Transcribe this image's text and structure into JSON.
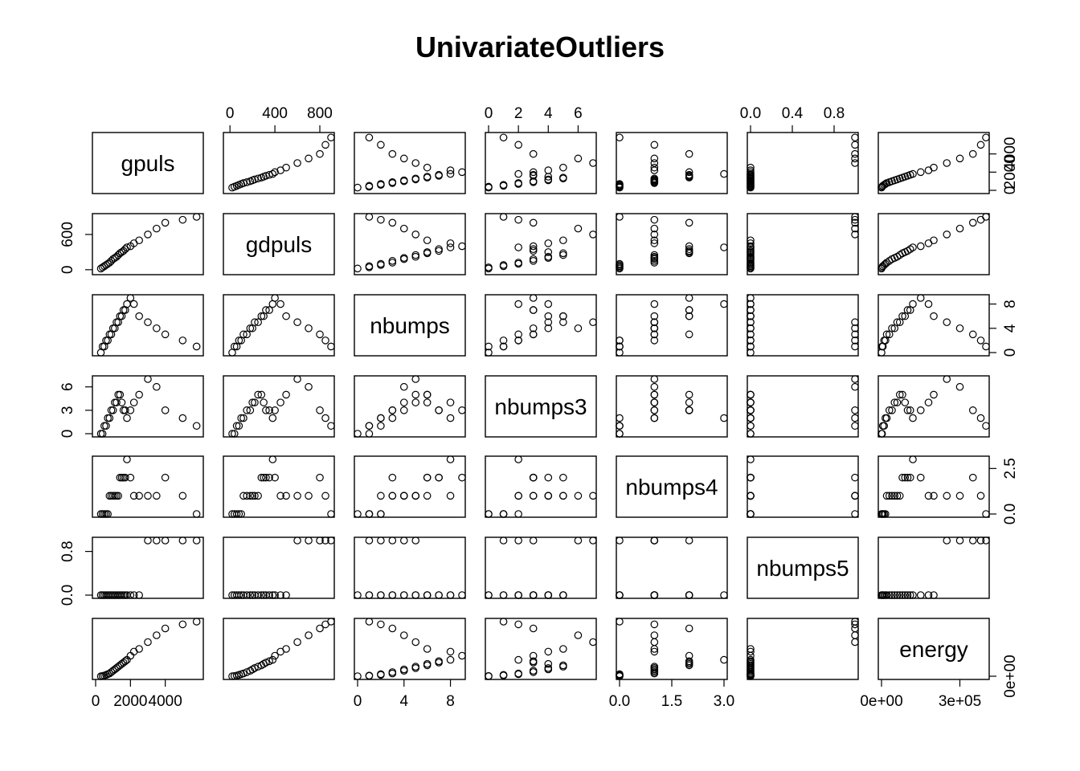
{
  "chart_data": {
    "type": "scatter",
    "title": "UnivariateOutliers",
    "variables": [
      {
        "name": "gpuls",
        "range": [
          0,
          6000
        ],
        "ticks": [
          0,
          2000,
          4000
        ],
        "tick_labels": [
          "0",
          "2000",
          "4000"
        ]
      },
      {
        "name": "gdpuls",
        "range": [
          -30,
          900
        ],
        "ticks": [
          0,
          400,
          800
        ],
        "tick_labels": [
          "0",
          "400",
          "800"
        ],
        "left_ticks": [
          0,
          600
        ],
        "left_tick_labels": [
          "0",
          "600"
        ]
      },
      {
        "name": "nbumps",
        "range": [
          0,
          9
        ],
        "ticks": [
          0,
          4,
          8
        ],
        "tick_labels": [
          "0",
          "4",
          "8"
        ]
      },
      {
        "name": "nbumps3",
        "range": [
          0,
          7
        ],
        "ticks": [
          0,
          2,
          4,
          6
        ],
        "tick_labels": [
          "0",
          "2",
          "4",
          "6"
        ],
        "left_ticks": [
          0,
          3,
          6
        ],
        "left_tick_labels": [
          "0",
          "3",
          "6"
        ]
      },
      {
        "name": "nbumps4",
        "range": [
          0,
          3
        ],
        "ticks": [
          0,
          1.5,
          3
        ],
        "tick_labels": [
          "0.0",
          "1.5",
          "3.0"
        ],
        "right_ticks": [
          0,
          2.5
        ],
        "right_tick_labels": [
          "0.0",
          "2.5"
        ]
      },
      {
        "name": "nbumps5",
        "range": [
          0,
          1
        ],
        "ticks": [
          0,
          0.4,
          0.8
        ],
        "tick_labels": [
          "0.0",
          "0.4",
          "0.8"
        ],
        "left_ticks": [
          0,
          0.8
        ],
        "left_tick_labels": [
          "0.0",
          "0.8"
        ]
      },
      {
        "name": "energy",
        "range": [
          0,
          400000
        ],
        "ticks": [
          0,
          300000
        ],
        "tick_labels": [
          "0e+00",
          "3e+05"
        ],
        "right_ticks": [
          0
        ],
        "right_tick_labels": [
          "0e+00"
        ]
      }
    ],
    "points": [
      [
        300,
        20,
        0,
        0,
        0,
        0,
        0
      ],
      [
        400,
        40,
        1,
        0,
        0,
        0,
        2000
      ],
      [
        500,
        60,
        1,
        1,
        0,
        0,
        5000
      ],
      [
        600,
        80,
        2,
        1,
        0,
        0,
        10000
      ],
      [
        700,
        100,
        2,
        2,
        0,
        0,
        15000
      ],
      [
        800,
        120,
        3,
        2,
        1,
        0,
        20000
      ],
      [
        900,
        150,
        3,
        3,
        1,
        0,
        30000
      ],
      [
        1000,
        180,
        4,
        3,
        1,
        0,
        40000
      ],
      [
        1100,
        200,
        4,
        4,
        1,
        0,
        50000
      ],
      [
        1200,
        220,
        5,
        4,
        1,
        0,
        60000
      ],
      [
        1300,
        250,
        5,
        5,
        1,
        0,
        70000
      ],
      [
        1400,
        280,
        6,
        5,
        2,
        0,
        80000
      ],
      [
        1500,
        300,
        6,
        4,
        2,
        0,
        90000
      ],
      [
        1600,
        320,
        7,
        3,
        2,
        0,
        100000
      ],
      [
        1700,
        350,
        7,
        3,
        2,
        0,
        110000
      ],
      [
        1800,
        380,
        8,
        2,
        3,
        0,
        120000
      ],
      [
        2000,
        400,
        9,
        3,
        2,
        0,
        150000
      ],
      [
        2200,
        450,
        8,
        4,
        1,
        0,
        180000
      ],
      [
        2500,
        500,
        6,
        5,
        1,
        0,
        200000
      ],
      [
        3000,
        600,
        5,
        7,
        1,
        1,
        250000
      ],
      [
        3500,
        700,
        4,
        6,
        1,
        1,
        300000
      ],
      [
        4000,
        800,
        3,
        3,
        2,
        1,
        350000
      ],
      [
        5000,
        850,
        2,
        2,
        1,
        1,
        380000
      ],
      [
        5800,
        900,
        1,
        1,
        0,
        1,
        400000
      ]
    ],
    "point_color": "#000000",
    "lowess_color": "#cc0000"
  }
}
